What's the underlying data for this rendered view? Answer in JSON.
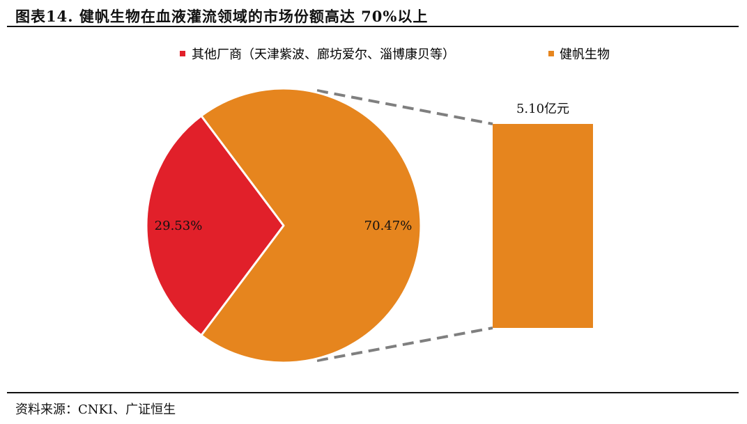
{
  "figure": {
    "title": "图表14.  健帆生物在血液灌流领域的市场份额高达 70%以上",
    "source": "资料来源：CNKI、广证恒生"
  },
  "chart_data": {
    "type": "pie",
    "subtype": "pie-of-bar",
    "categories": [
      "其他厂商（天津紫波、廊坊爱尔、淄博康贝等）",
      "健帆生物"
    ],
    "values": [
      29.53,
      70.47
    ],
    "labels": [
      "29.53%",
      "70.47%"
    ],
    "colors": [
      "#E1202A",
      "#E6851E"
    ],
    "legend_position": "top",
    "breakout": {
      "category": "健帆生物",
      "label": "5.10亿元",
      "value": 5.1,
      "unit": "亿元",
      "color": "#E6851E"
    }
  }
}
